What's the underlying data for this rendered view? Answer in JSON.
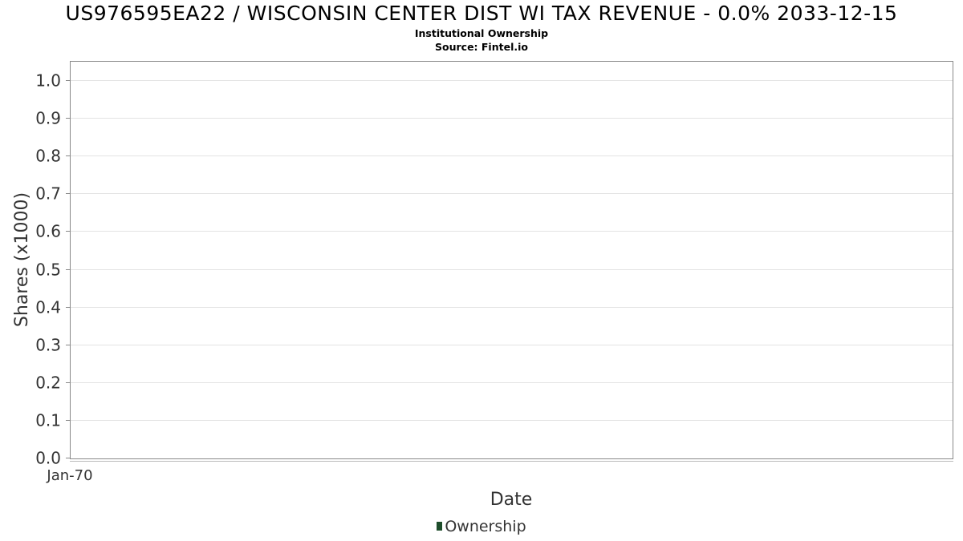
{
  "chart_data": {
    "type": "area",
    "title": "US976595EA22 / WISCONSIN CENTER DIST WI TAX REVENUE - 0.0% 2033-12-15",
    "subtitle_lines": [
      "Institutional Ownership",
      "Source: Fintel.io"
    ],
    "xlabel": "Date",
    "ylabel": "Shares (x1000)",
    "x_tick_labels": [
      "Jan-70"
    ],
    "y_ticks": [
      "0.0",
      "0.1",
      "0.2",
      "0.3",
      "0.4",
      "0.5",
      "0.6",
      "0.7",
      "0.8",
      "0.9",
      "1.0"
    ],
    "ylim": [
      0,
      1.05
    ],
    "grid": true,
    "legend_position": "bottom",
    "series": [
      {
        "name": "Ownership",
        "color": "#1e4d2b",
        "x": [],
        "values": []
      }
    ]
  }
}
